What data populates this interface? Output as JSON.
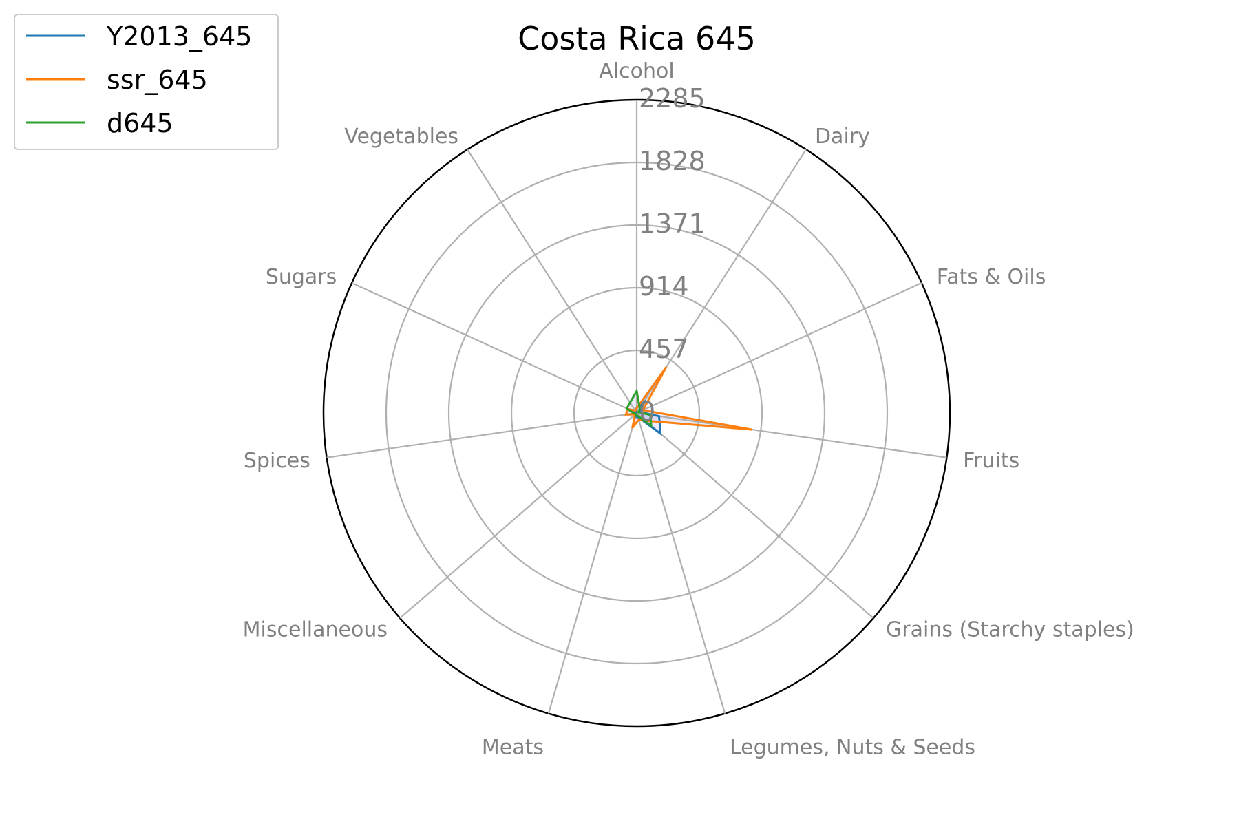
{
  "chart_data": {
    "type": "radar",
    "title": "Costa Rica 645",
    "categories": [
      "Alcohol",
      "Dairy",
      "Fats & Oils",
      "Fruits",
      "Grains (Starchy staples)",
      "Legumes, Nuts & Seeds",
      "Meats",
      "Miscellaneous",
      "Spices",
      "Sugars",
      "Vegetables"
    ],
    "r_ticks": [
      0,
      457,
      914,
      1371,
      1828,
      2285
    ],
    "r_tick_labels": [
      "0",
      "457",
      "914",
      "1371",
      "1828",
      "2285"
    ],
    "rlim": [
      0,
      2285
    ],
    "grid": true,
    "legend_position": "top-left",
    "series": [
      {
        "name": "Y2013_645",
        "color": "#1f77b4",
        "values": [
          40,
          90,
          20,
          165,
          230,
          30,
          30,
          5,
          10,
          45,
          15
        ]
      },
      {
        "name": "ssr_645",
        "color": "#ff7f0e",
        "values": [
          35,
          400,
          50,
          850,
          85,
          50,
          115,
          15,
          80,
          70,
          20
        ]
      },
      {
        "name": "d645",
        "color": "#2ca02c",
        "values": [
          160,
          40,
          15,
          100,
          140,
          20,
          20,
          10,
          20,
          80,
          90
        ]
      }
    ],
    "fill_color": "#b0b0ee"
  }
}
